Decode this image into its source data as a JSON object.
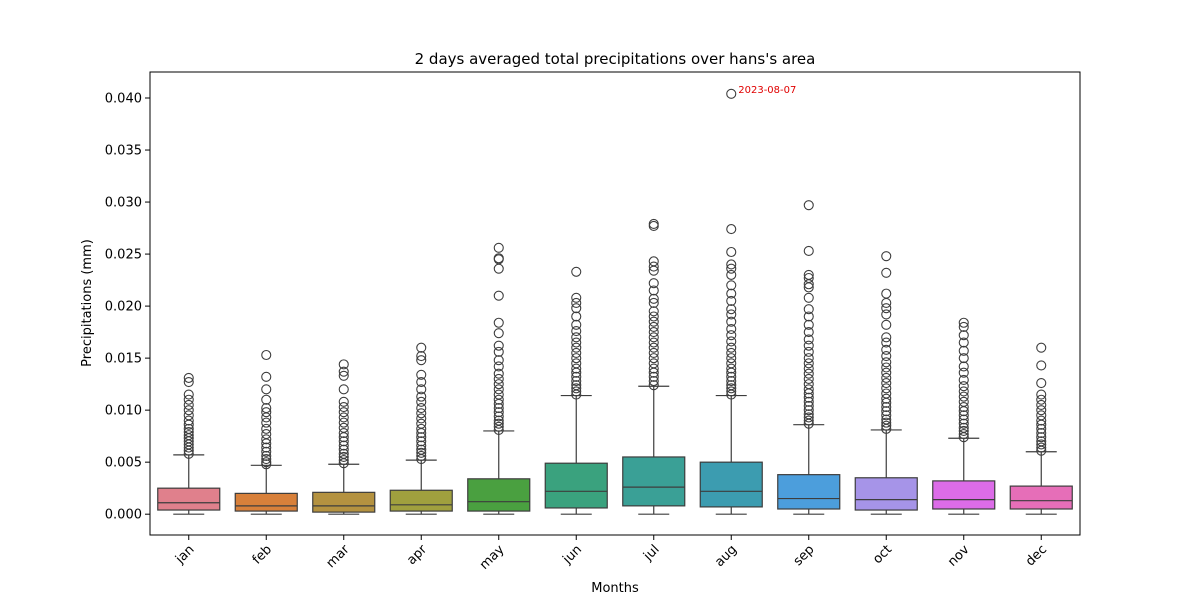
{
  "chart_data": {
    "type": "box",
    "title": "2 days averaged total precipitations over hans's area",
    "xlabel": "Months",
    "ylabel": "Precipitations (mm)",
    "ylim": [
      -0.002,
      0.0425
    ],
    "yticks": [
      "0.000",
      "0.005",
      "0.010",
      "0.015",
      "0.020",
      "0.025",
      "0.030",
      "0.035",
      "0.040"
    ],
    "grid": false,
    "categories": [
      "jan",
      "feb",
      "mar",
      "apr",
      "may",
      "jun",
      "jul",
      "aug",
      "sep",
      "oct",
      "nov",
      "dec"
    ],
    "boxes": [
      {
        "month": "jan",
        "color": "#e0808c",
        "min": 0.0,
        "q1": 0.0004,
        "median": 0.0011,
        "q3": 0.0025,
        "max": 0.0057,
        "fliers": [
          0.0058,
          0.0061,
          0.0064,
          0.0067,
          0.007,
          0.0073,
          0.0076,
          0.0079,
          0.0082,
          0.0086,
          0.009,
          0.0095,
          0.01,
          0.0105,
          0.011,
          0.0115,
          0.0127,
          0.0131
        ]
      },
      {
        "month": "feb",
        "color": "#d8803a",
        "min": 0.0,
        "q1": 0.0003,
        "median": 0.0008,
        "q3": 0.002,
        "max": 0.0047,
        "fliers": [
          0.0048,
          0.005,
          0.0053,
          0.0056,
          0.006,
          0.0064,
          0.0068,
          0.0072,
          0.0077,
          0.0082,
          0.0088,
          0.0093,
          0.0098,
          0.0102,
          0.011,
          0.012,
          0.0132,
          0.0153
        ]
      },
      {
        "month": "mar",
        "color": "#b49240",
        "min": 0.0,
        "q1": 0.0002,
        "median": 0.0008,
        "q3": 0.0021,
        "max": 0.0048,
        "fliers": [
          0.0049,
          0.0052,
          0.0055,
          0.0058,
          0.0062,
          0.0066,
          0.007,
          0.0074,
          0.0078,
          0.0083,
          0.0088,
          0.0093,
          0.0098,
          0.0103,
          0.0108,
          0.012,
          0.0133,
          0.0137,
          0.0144
        ]
      },
      {
        "month": "apr",
        "color": "#a0a03e",
        "min": 0.0,
        "q1": 0.0003,
        "median": 0.0009,
        "q3": 0.0023,
        "max": 0.0052,
        "fliers": [
          0.0053,
          0.0056,
          0.0059,
          0.0062,
          0.0066,
          0.007,
          0.0074,
          0.0078,
          0.0082,
          0.0087,
          0.0092,
          0.0097,
          0.0102,
          0.0108,
          0.0113,
          0.012,
          0.0127,
          0.0134,
          0.0148,
          0.0152,
          0.016
        ]
      },
      {
        "month": "may",
        "color": "#4aa040",
        "min": 0.0,
        "q1": 0.0003,
        "median": 0.0012,
        "q3": 0.0034,
        "max": 0.008,
        "fliers": [
          0.0081,
          0.0084,
          0.0087,
          0.009,
          0.0094,
          0.0098,
          0.0102,
          0.0106,
          0.011,
          0.0115,
          0.012,
          0.0125,
          0.013,
          0.0135,
          0.0142,
          0.0148,
          0.0156,
          0.0162,
          0.0174,
          0.0184,
          0.021,
          0.0236,
          0.0245,
          0.0246,
          0.0256
        ]
      },
      {
        "month": "jun",
        "color": "#3aa27e",
        "min": 0.0,
        "q1": 0.0006,
        "median": 0.0022,
        "q3": 0.0049,
        "max": 0.0114,
        "fliers": [
          0.0115,
          0.0118,
          0.0121,
          0.0124,
          0.0128,
          0.0132,
          0.0136,
          0.014,
          0.0145,
          0.015,
          0.0155,
          0.016,
          0.0165,
          0.017,
          0.0176,
          0.0182,
          0.019,
          0.0198,
          0.0203,
          0.0208,
          0.0233
        ]
      },
      {
        "month": "jul",
        "color": "#3aa096",
        "min": 0.0,
        "q1": 0.0008,
        "median": 0.0026,
        "q3": 0.0055,
        "max": 0.0123,
        "fliers": [
          0.0124,
          0.0128,
          0.0132,
          0.0136,
          0.014,
          0.0145,
          0.015,
          0.0155,
          0.016,
          0.0165,
          0.017,
          0.0175,
          0.018,
          0.0185,
          0.019,
          0.0195,
          0.0203,
          0.0207,
          0.0215,
          0.0222,
          0.0234,
          0.0238,
          0.0243,
          0.0277,
          0.0279
        ]
      },
      {
        "month": "aug",
        "color": "#3c9cb0",
        "min": 0.0,
        "q1": 0.0007,
        "median": 0.0022,
        "q3": 0.005,
        "max": 0.0114,
        "fliers": [
          0.0115,
          0.0118,
          0.0121,
          0.0124,
          0.0128,
          0.0132,
          0.0136,
          0.014,
          0.0145,
          0.015,
          0.0155,
          0.016,
          0.0166,
          0.0172,
          0.0178,
          0.0185,
          0.0192,
          0.0197,
          0.0205,
          0.0212,
          0.022,
          0.023,
          0.0236,
          0.024,
          0.0252,
          0.0274,
          0.0404
        ]
      },
      {
        "month": "sep",
        "color": "#4c9edc",
        "min": 0.0,
        "q1": 0.0005,
        "median": 0.0015,
        "q3": 0.0038,
        "max": 0.0086,
        "fliers": [
          0.0087,
          0.009,
          0.0093,
          0.0096,
          0.01,
          0.0104,
          0.0108,
          0.0112,
          0.0116,
          0.012,
          0.0125,
          0.013,
          0.0135,
          0.014,
          0.0145,
          0.015,
          0.0156,
          0.0162,
          0.0168,
          0.0175,
          0.0182,
          0.019,
          0.0197,
          0.0208,
          0.0218,
          0.0221,
          0.0227,
          0.023,
          0.0253,
          0.0297
        ]
      },
      {
        "month": "oct",
        "color": "#a694e8",
        "min": 0.0,
        "q1": 0.0004,
        "median": 0.0014,
        "q3": 0.0035,
        "max": 0.0081,
        "fliers": [
          0.0082,
          0.0085,
          0.0088,
          0.0091,
          0.0095,
          0.0099,
          0.0103,
          0.0107,
          0.0111,
          0.0116,
          0.0121,
          0.0126,
          0.0131,
          0.0136,
          0.0141,
          0.0146,
          0.0152,
          0.0158,
          0.0165,
          0.017,
          0.0182,
          0.0192,
          0.0198,
          0.0203,
          0.0212,
          0.0232,
          0.0248
        ]
      },
      {
        "month": "nov",
        "color": "#dc6ce8",
        "min": 0.0,
        "q1": 0.0005,
        "median": 0.0014,
        "q3": 0.0032,
        "max": 0.0073,
        "fliers": [
          0.0074,
          0.0077,
          0.008,
          0.0083,
          0.0087,
          0.0091,
          0.0095,
          0.0099,
          0.0103,
          0.0108,
          0.0113,
          0.0118,
          0.0123,
          0.0129,
          0.0136,
          0.0142,
          0.015,
          0.0157,
          0.0165,
          0.0172,
          0.018,
          0.0184
        ]
      },
      {
        "month": "dec",
        "color": "#e66eb8",
        "min": 0.0,
        "q1": 0.0005,
        "median": 0.0013,
        "q3": 0.0027,
        "max": 0.006,
        "fliers": [
          0.0061,
          0.0064,
          0.0067,
          0.007,
          0.0074,
          0.0078,
          0.0082,
          0.0086,
          0.009,
          0.0095,
          0.01,
          0.0105,
          0.011,
          0.0115,
          0.0126,
          0.0143,
          0.016
        ]
      }
    ],
    "annotations": [
      {
        "text": "2023-08-07",
        "category": "aug",
        "y": 0.0404,
        "color": "#e00000"
      }
    ]
  }
}
